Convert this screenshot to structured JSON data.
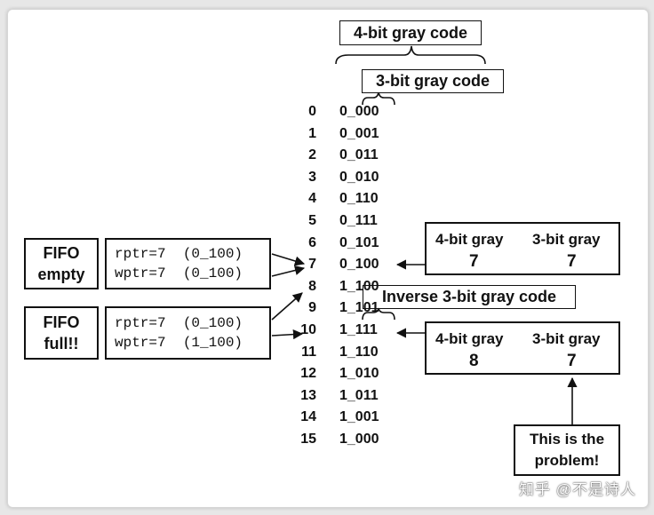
{
  "titles": {
    "four_bit": "4-bit gray code",
    "three_bit": "3-bit gray code",
    "inverse_three_bit": "Inverse 3-bit gray code"
  },
  "gray_table": [
    {
      "index": "0",
      "code": "0_000"
    },
    {
      "index": "1",
      "code": "0_001"
    },
    {
      "index": "2",
      "code": "0_011"
    },
    {
      "index": "3",
      "code": "0_010"
    },
    {
      "index": "4",
      "code": "0_110"
    },
    {
      "index": "5",
      "code": "0_111"
    },
    {
      "index": "6",
      "code": "0_101"
    },
    {
      "index": "7",
      "code": "0_100"
    },
    {
      "index": "8",
      "code": "1_100"
    },
    {
      "index": "9",
      "code": "1_101"
    },
    {
      "index": "10",
      "code": "1_111"
    },
    {
      "index": "11",
      "code": "1_110"
    },
    {
      "index": "12",
      "code": "1_010"
    },
    {
      "index": "13",
      "code": "1_011"
    },
    {
      "index": "14",
      "code": "1_001"
    },
    {
      "index": "15",
      "code": "1_000"
    }
  ],
  "fifo_empty": {
    "label_line1": "FIFO",
    "label_line2": "empty",
    "rptr": "rptr=7  (0_100)",
    "wptr": "wptr=7  (0_100)"
  },
  "fifo_full": {
    "label_line1": "FIFO",
    "label_line2": "full!!",
    "rptr": "rptr=7  (0_100)",
    "wptr": "wptr=7  (1_100)"
  },
  "gray_compare_top": {
    "header_4bit": "4-bit gray",
    "header_3bit": "3-bit gray",
    "value_4bit": "7",
    "value_3bit": "7"
  },
  "gray_compare_bottom": {
    "header_4bit": "4-bit gray",
    "header_3bit": "3-bit gray",
    "value_4bit": "8",
    "value_3bit": "7"
  },
  "problem_note": {
    "line1": "This is the",
    "line2": "problem!"
  },
  "watermark": "知乎 @不是诗人"
}
